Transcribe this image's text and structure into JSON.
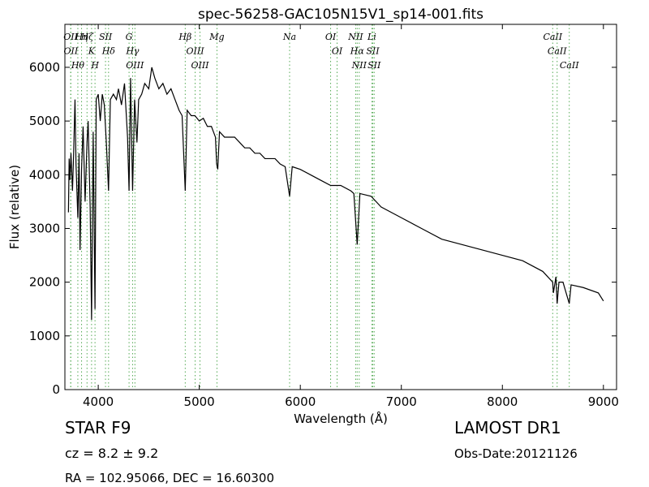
{
  "chart_data": {
    "type": "line",
    "title": "spec-56258-GAC105N15V1_sp14-001.fits",
    "x_label": "Wavelength (Å)",
    "y_label": "Flux (relative)",
    "xlim": [
      3670,
      9130
    ],
    "ylim": [
      0,
      6800
    ],
    "xticks": [
      4000,
      5000,
      6000,
      7000,
      8000,
      9000
    ],
    "yticks": [
      0,
      1000,
      2000,
      3000,
      4000,
      5000,
      6000
    ],
    "grid": false,
    "series": [
      {
        "color": "#000000",
        "x": [
          3705,
          3712,
          3720,
          3730,
          3745,
          3755,
          3770,
          3780,
          3798,
          3810,
          3820,
          3835,
          3850,
          3870,
          3889,
          3900,
          3920,
          3934,
          3950,
          3968,
          3980,
          4000,
          4020,
          4040,
          4060,
          4080,
          4102,
          4120,
          4150,
          4180,
          4200,
          4230,
          4260,
          4290,
          4305,
          4320,
          4340,
          4360,
          4383,
          4400,
          4430,
          4460,
          4500,
          4530,
          4560,
          4600,
          4640,
          4680,
          4720,
          4760,
          4800,
          4830,
          4861,
          4880,
          4920,
          4957,
          5000,
          5040,
          5080,
          5120,
          5160,
          5172,
          5183,
          5200,
          5250,
          5300,
          5350,
          5400,
          5450,
          5500,
          5550,
          5600,
          5650,
          5700,
          5750,
          5800,
          5850,
          5894,
          5920,
          6000,
          6100,
          6200,
          6300,
          6400,
          6500,
          6530,
          6563,
          6590,
          6700,
          6800,
          6900,
          7000,
          7200,
          7400,
          7600,
          7800,
          8000,
          8200,
          8400,
          8498,
          8505,
          8530,
          8542,
          8560,
          8600,
          8662,
          8680,
          8800,
          8950,
          9000
        ],
        "values": [
          3300,
          4300,
          3900,
          4400,
          3700,
          4300,
          5400,
          4200,
          3200,
          4400,
          2600,
          4100,
          4900,
          3500,
          4600,
          5000,
          3400,
          1300,
          4800,
          1500,
          5400,
          5500,
          5000,
          5500,
          5300,
          4600,
          3700,
          5400,
          5500,
          5400,
          5600,
          5300,
          5700,
          4700,
          3700,
          5800,
          3700,
          5400,
          4600,
          5400,
          5500,
          5700,
          5600,
          6000,
          5800,
          5600,
          5700,
          5500,
          5600,
          5400,
          5200,
          5100,
          3700,
          5200,
          5100,
          5100,
          5000,
          5050,
          4900,
          4900,
          4700,
          4200,
          4100,
          4800,
          4700,
          4700,
          4700,
          4600,
          4500,
          4500,
          4400,
          4400,
          4300,
          4300,
          4300,
          4200,
          4150,
          3600,
          4150,
          4100,
          4000,
          3900,
          3800,
          3800,
          3700,
          3650,
          2700,
          3650,
          3600,
          3400,
          3300,
          3200,
          3000,
          2800,
          2700,
          2600,
          2500,
          2400,
          2200,
          2000,
          1800,
          2100,
          1600,
          2000,
          2000,
          1600,
          1950,
          1900,
          1800,
          1650
        ]
      }
    ],
    "line_markers": {
      "color": "#55aa55",
      "lines": [
        {
          "label": "OII",
          "wavelength": 3727
        },
        {
          "label": "OII",
          "wavelength": 3729
        },
        {
          "label": "Hθ",
          "wavelength": 3798
        },
        {
          "label": "Hη",
          "wavelength": 3835
        },
        {
          "label": "Hζ",
          "wavelength": 3889
        },
        {
          "label": "K",
          "wavelength": 3934
        },
        {
          "label": "H",
          "wavelength": 3968
        },
        {
          "label": "SII",
          "wavelength": 4072
        },
        {
          "label": "Hδ",
          "wavelength": 4102
        },
        {
          "label": "G",
          "wavelength": 4305
        },
        {
          "label": "Hγ",
          "wavelength": 4340
        },
        {
          "label": "OIII",
          "wavelength": 4363
        },
        {
          "label": "Hβ",
          "wavelength": 4861
        },
        {
          "label": "OIII",
          "wavelength": 4959
        },
        {
          "label": "OIII",
          "wavelength": 5007
        },
        {
          "label": "Mg",
          "wavelength": 5175
        },
        {
          "label": "Na",
          "wavelength": 5894
        },
        {
          "label": "OI",
          "wavelength": 6300
        },
        {
          "label": "OI",
          "wavelength": 6364
        },
        {
          "label": "NII",
          "wavelength": 6548
        },
        {
          "label": "Hα",
          "wavelength": 6563
        },
        {
          "label": "NII",
          "wavelength": 6583
        },
        {
          "label": "Li",
          "wavelength": 6708
        },
        {
          "label": "SII",
          "wavelength": 6717
        },
        {
          "label": "SII",
          "wavelength": 6731
        },
        {
          "label": "CaII",
          "wavelength": 8498
        },
        {
          "label": "CaII",
          "wavelength": 8542
        },
        {
          "label": "CaII",
          "wavelength": 8662
        }
      ]
    },
    "info": {
      "object": "STAR   F9",
      "cz": "cz = 8.2 ± 9.2",
      "coords": "RA = 102.95066, DEC = 16.60300",
      "survey": "LAMOST DR1",
      "obs_date": "Obs-Date:20121126"
    }
  }
}
